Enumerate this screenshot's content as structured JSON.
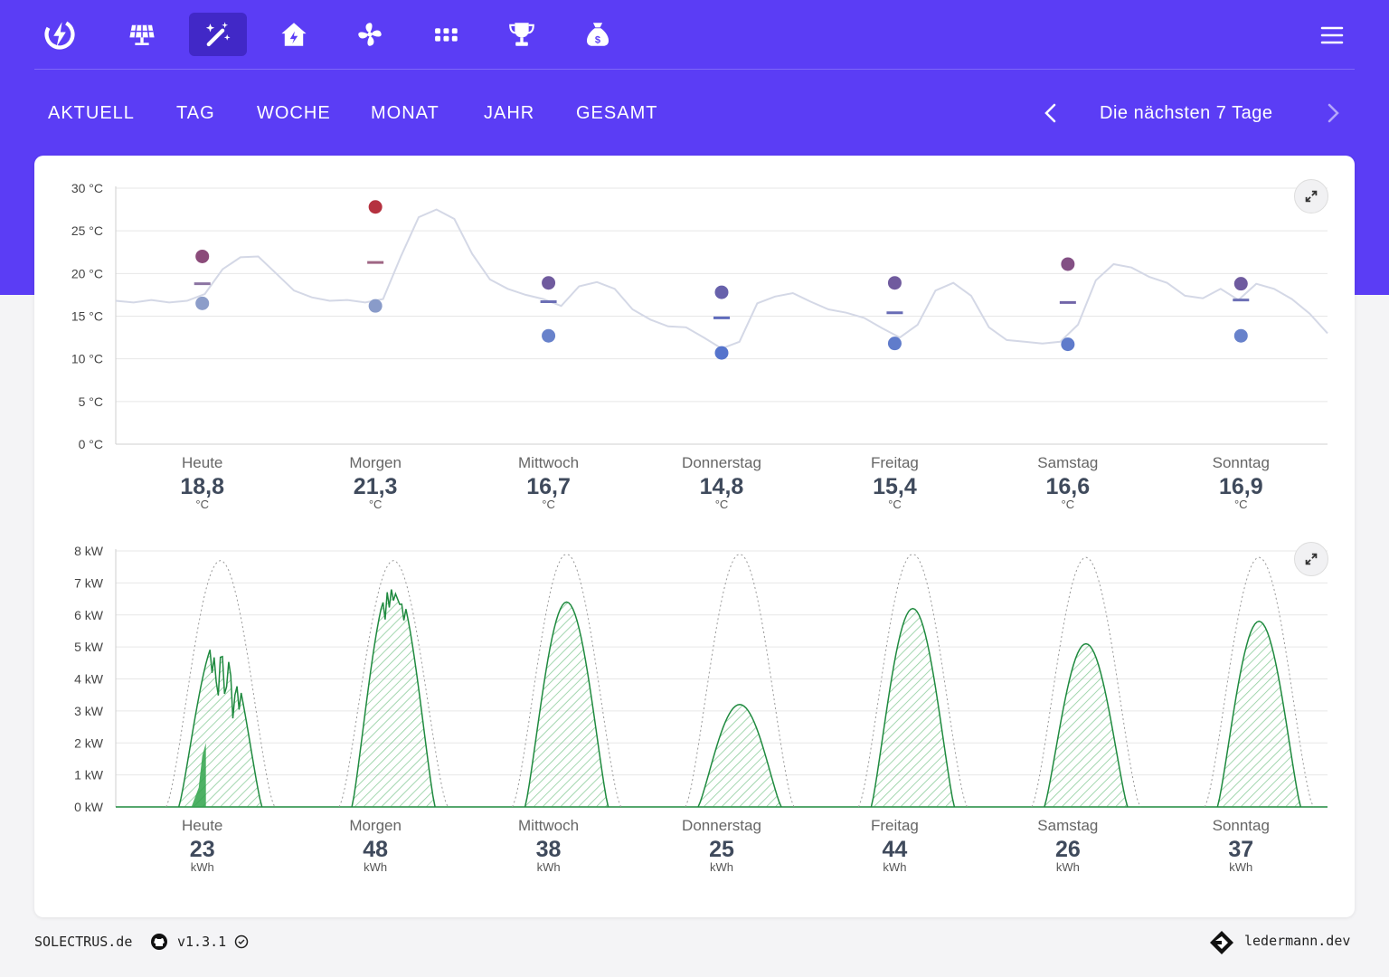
{
  "nav": {
    "icons": [
      "lightning-logo-icon",
      "solar-panel-icon",
      "magic-wand-icon",
      "house-icon",
      "fan-icon",
      "grid-icon",
      "trophy-icon",
      "money-bag-icon"
    ],
    "active": "magic-wand-icon",
    "menu_icon": "hamburger-menu-icon",
    "accent": "#5b3df5",
    "active_bg": "#4128c7"
  },
  "tabs": [
    "AKTUELL",
    "TAG",
    "WOCHE",
    "MONAT",
    "JAHR",
    "GESAMT"
  ],
  "period": {
    "label": "Die nächsten 7 Tage"
  },
  "temperature": {
    "y_ticks": [
      "30 °C",
      "25 °C",
      "20 °C",
      "15 °C",
      "10 °C",
      "5 °C",
      "0 °C"
    ],
    "days": [
      {
        "name": "Heute",
        "value": "18,8",
        "unit": "°C",
        "min": 16.5,
        "max": 22,
        "mean": 18.8
      },
      {
        "name": "Morgen",
        "value": "21,3",
        "unit": "°C",
        "min": 16.2,
        "max": 27.8,
        "mean": 21.3
      },
      {
        "name": "Mittwoch",
        "value": "16,7",
        "unit": "°C",
        "min": 12.7,
        "max": 18.9,
        "mean": 16.7
      },
      {
        "name": "Donnerstag",
        "value": "14,8",
        "unit": "°C",
        "min": 10.7,
        "max": 17.8,
        "mean": 14.8
      },
      {
        "name": "Freitag",
        "value": "15,4",
        "unit": "°C",
        "min": 11.8,
        "max": 18.9,
        "mean": 15.4
      },
      {
        "name": "Samstag",
        "value": "16,6",
        "unit": "°C",
        "min": 11.7,
        "max": 21.1,
        "mean": 16.6
      },
      {
        "name": "Sonntag",
        "value": "16,9",
        "unit": "°C",
        "min": 12.7,
        "max": 18.8,
        "mean": 16.9
      }
    ],
    "curve": [
      16.8,
      16.6,
      16.9,
      16.6,
      16.8,
      17.6,
      20.5,
      21.9,
      22.0,
      20.0,
      18.0,
      17.2,
      16.8,
      16.9,
      16.6,
      17.0,
      22.0,
      26.6,
      27.5,
      26.4,
      22.3,
      19.3,
      18.2,
      17.5,
      17.0,
      16.2,
      18.5,
      19.0,
      18.2,
      15.8,
      14.6,
      13.8,
      13.7,
      12.5,
      11.2,
      12.0,
      16.5,
      17.3,
      17.7,
      16.7,
      15.8,
      15.4,
      14.8,
      13.6,
      12.5,
      14.0,
      18.0,
      18.9,
      17.4,
      13.7,
      12.2,
      12.0,
      11.8,
      12.0,
      14.0,
      19.2,
      21.1,
      20.7,
      19.6,
      18.9,
      17.4,
      17.1,
      18.2,
      16.9,
      18.8,
      18.2,
      17.0,
      15.3,
      13.0
    ],
    "colors": {
      "hot": "#b5313f",
      "cold": "#4f6fcc",
      "curve": "#d4d8e6"
    }
  },
  "power": {
    "y_ticks": [
      "8 kW",
      "7 kW",
      "6 kW",
      "5 kW",
      "4 kW",
      "3 kW",
      "2 kW",
      "1 kW",
      "0 kW"
    ],
    "days": [
      {
        "name": "Heute",
        "value": "23",
        "unit": "kWh",
        "peak": 5.4,
        "clear": 7.7
      },
      {
        "name": "Morgen",
        "value": "48",
        "unit": "kWh",
        "peak": 7.1,
        "clear": 7.7
      },
      {
        "name": "Mittwoch",
        "value": "38",
        "unit": "kWh",
        "peak": 6.4,
        "clear": 7.9
      },
      {
        "name": "Donnerstag",
        "value": "25",
        "unit": "kWh",
        "peak": 3.2,
        "clear": 7.9
      },
      {
        "name": "Freitag",
        "value": "44",
        "unit": "kWh",
        "peak": 6.2,
        "clear": 7.9
      },
      {
        "name": "Samstag",
        "value": "26",
        "unit": "kWh",
        "peak": 5.1,
        "clear": 7.8
      },
      {
        "name": "Sonntag",
        "value": "37",
        "unit": "kWh",
        "peak": 5.8,
        "clear": 7.8
      }
    ],
    "colors": {
      "line": "#1f8a3f",
      "fill": "#2fa34a",
      "clearsky": "#999999"
    }
  },
  "footer": {
    "brand": "SOLECTRUS.de",
    "version": "v1.3.1",
    "author": "ledermann.dev",
    "github_icon": "github-icon",
    "check_icon": "check-circle-icon",
    "author_logo": "ledermann-logo-icon"
  }
}
